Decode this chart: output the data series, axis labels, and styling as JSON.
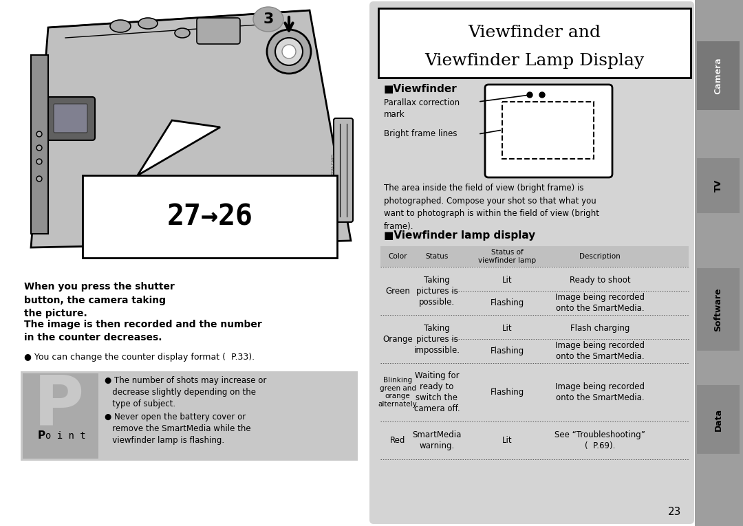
{
  "title_line1": "Viewfinder and",
  "title_line2": "Viewfinder Lamp Display",
  "section1_heading": "■Viewfinder",
  "parallax_label": "Parallax correction\nmark",
  "bright_frame_label": "Bright frame lines",
  "viewfinder_desc": "The area inside the field of view (bright frame) is\nphotographed. Compose your shot so that what you\nwant to photograph is within the field of view (bright\nframe).",
  "section2_heading": "■Viewfinder lamp display",
  "table_headers": [
    "Color",
    "Status",
    "Status of\nviewfinder lamp",
    "Description"
  ],
  "left_bold_text1": "When you press the shutter\nbutton, the camera taking\nthe picture.",
  "left_bold_text2": "The image is then recorded and the number\nin the counter decreases.",
  "left_bullet1": "● You can change the counter display format (  P.33).",
  "point_bullet1": "● The number of shots may increase or\n   decrease slightly depending on the\n   type of subject.",
  "point_bullet2": "● Never open the battery cover or\n   remove the SmartMedia while the\n   viewfinder lamp is flashing.",
  "counter_text": "27→26",
  "step_number": "3",
  "page_number": "23",
  "bg_color": "#ffffff",
  "right_panel_bg": "#d4d4d4",
  "table_header_bg": "#c0c0c0",
  "sidebar_bg": "#9e9e9e",
  "sidebar_label_bg": "#8a8a8a",
  "point_box_bg": "#c8c8c8",
  "point_label_bg": "#aaaaaa",
  "camera_body_color": "#c0c0c0"
}
